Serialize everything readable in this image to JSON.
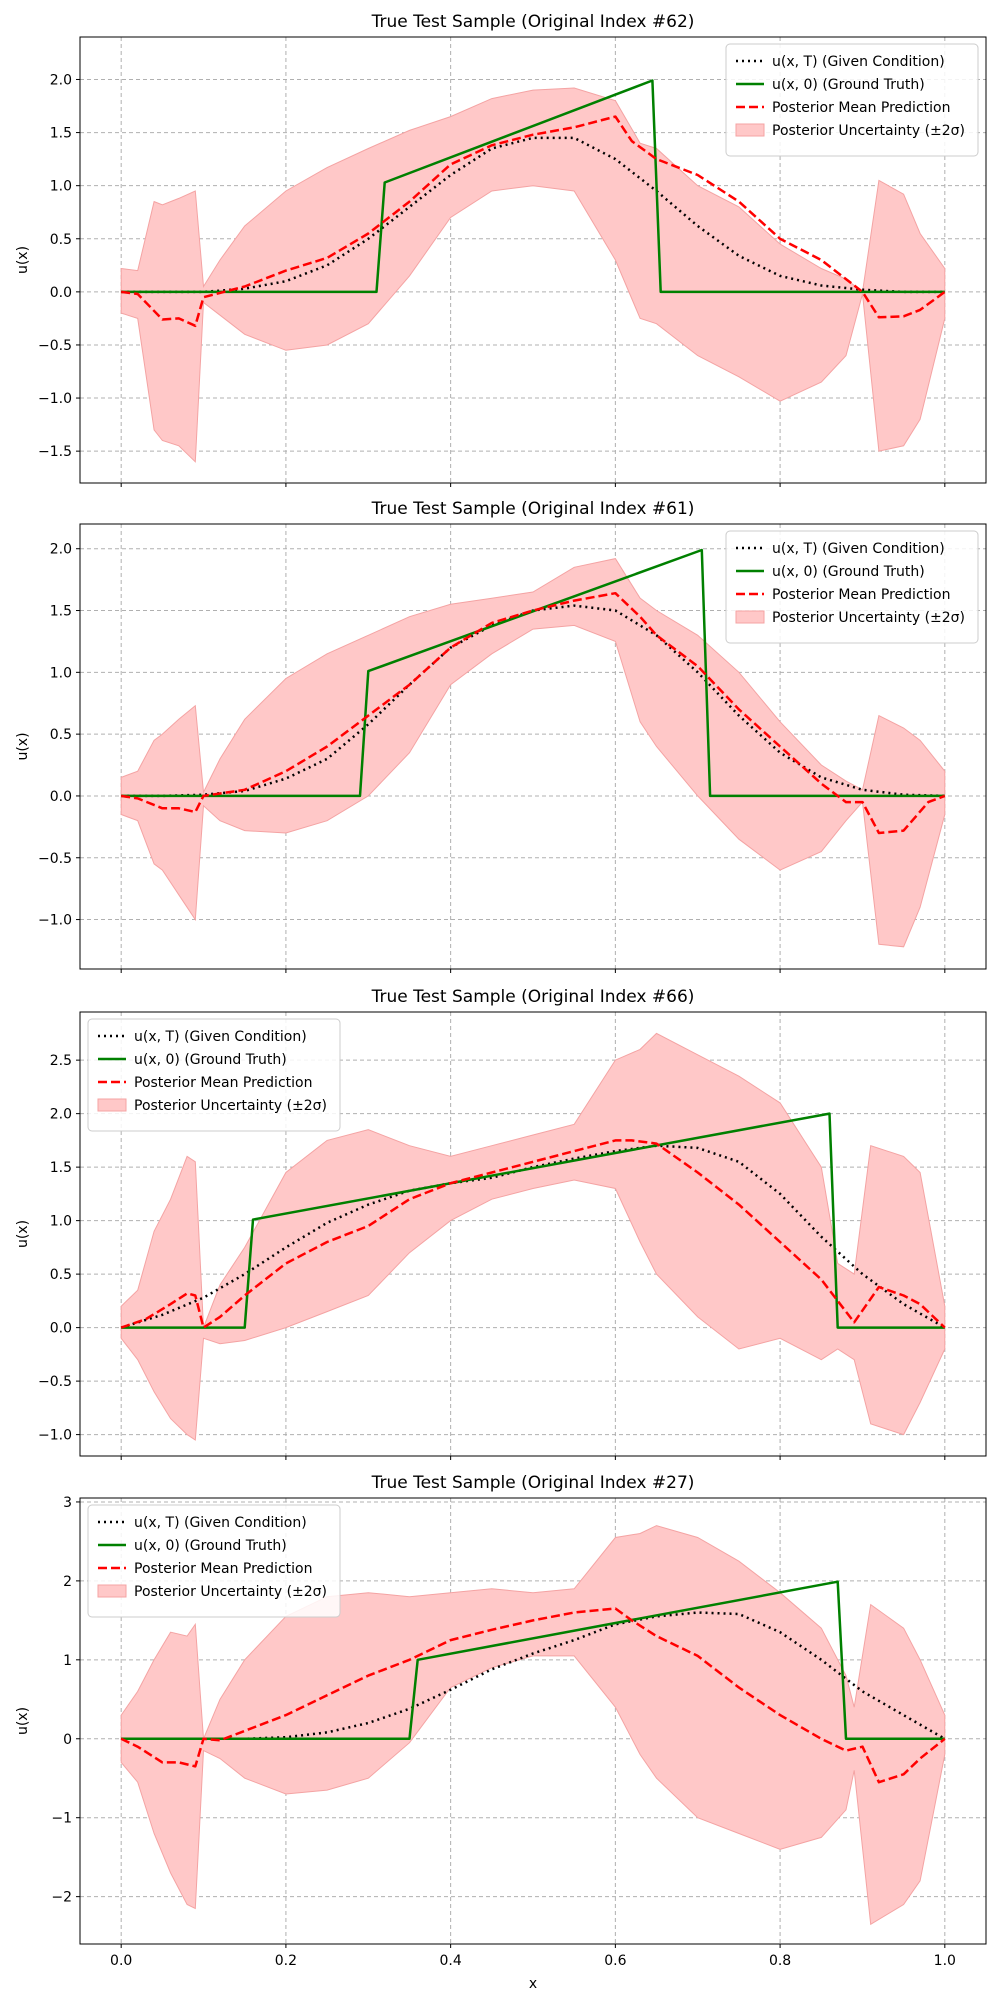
{
  "colors": {
    "condition": "#000000",
    "ground_truth": "#008000",
    "mean": "#ff0000",
    "band": "#ffc8c8",
    "band_edge": "#f4a3a3",
    "grid": "#b0b0b0"
  },
  "xlabel": "x",
  "ylabel": "u(x)",
  "legend_labels": {
    "condition": "u(x, T) (Given Condition)",
    "ground_truth": "u(x, 0) (Ground Truth)",
    "mean": "Posterior Mean Prediction",
    "band": "Posterior Uncertainty (±2σ)"
  },
  "x_tick_labels": [
    "0.0",
    "0.2",
    "0.4",
    "0.6",
    "0.8",
    "1.0"
  ],
  "chart_data": [
    {
      "type": "line",
      "title": "True Test Sample (Original Index #62)",
      "xlabel": "",
      "ylabel": "u(x)",
      "xlim": [
        -0.05,
        1.05
      ],
      "ylim": [
        -1.8,
        2.4
      ],
      "x_ticks": [
        0,
        0.2,
        0.4,
        0.6,
        0.8,
        1.0
      ],
      "y_ticks": [
        -1.5,
        -1.0,
        -0.5,
        0.0,
        0.5,
        1.0,
        1.5,
        2.0
      ],
      "y_tick_labels": [
        "−1.5",
        "−1.0",
        "−0.5",
        "0.0",
        "0.5",
        "1.0",
        "1.5",
        "2.0"
      ],
      "grid": true,
      "legend_position": "upper right",
      "ground_truth": {
        "x": [
          0,
          0.31,
          0.32,
          0.645,
          0.655,
          1.0
        ],
        "y": [
          0,
          0,
          1.03,
          1.99,
          0,
          0
        ]
      },
      "condition": {
        "x": [
          0,
          0.05,
          0.1,
          0.15,
          0.2,
          0.25,
          0.3,
          0.35,
          0.4,
          0.45,
          0.5,
          0.55,
          0.6,
          0.65,
          0.7,
          0.75,
          0.8,
          0.85,
          0.9,
          0.95,
          1.0
        ],
        "y": [
          0,
          0,
          0,
          0.03,
          0.1,
          0.25,
          0.5,
          0.8,
          1.1,
          1.35,
          1.45,
          1.45,
          1.25,
          0.95,
          0.62,
          0.34,
          0.15,
          0.06,
          0.02,
          0,
          0
        ]
      },
      "mean": {
        "x": [
          0,
          0.02,
          0.05,
          0.07,
          0.09,
          0.1,
          0.12,
          0.15,
          0.2,
          0.25,
          0.3,
          0.35,
          0.4,
          0.45,
          0.5,
          0.55,
          0.6,
          0.62,
          0.65,
          0.7,
          0.75,
          0.8,
          0.85,
          0.88,
          0.9,
          0.92,
          0.95,
          0.97,
          1.0
        ],
        "y": [
          0,
          -0.02,
          -0.26,
          -0.25,
          -0.32,
          -0.05,
          -0.01,
          0.05,
          0.2,
          0.32,
          0.55,
          0.85,
          1.2,
          1.38,
          1.48,
          1.55,
          1.65,
          1.42,
          1.25,
          1.1,
          0.85,
          0.5,
          0.3,
          0.12,
          0.0,
          -0.24,
          -0.23,
          -0.17,
          0
        ]
      },
      "band": {
        "x": [
          0,
          0.02,
          0.04,
          0.05,
          0.07,
          0.09,
          0.1,
          0.12,
          0.15,
          0.2,
          0.25,
          0.3,
          0.35,
          0.4,
          0.45,
          0.5,
          0.55,
          0.6,
          0.63,
          0.65,
          0.7,
          0.75,
          0.8,
          0.85,
          0.88,
          0.9,
          0.92,
          0.95,
          0.97,
          1.0
        ],
        "upper": [
          0.22,
          0.2,
          0.85,
          0.82,
          0.88,
          0.95,
          0.05,
          0.3,
          0.62,
          0.95,
          1.17,
          1.35,
          1.52,
          1.65,
          1.82,
          1.9,
          1.92,
          1.8,
          1.4,
          1.35,
          1.0,
          0.8,
          0.45,
          0.22,
          0.12,
          0.0,
          1.05,
          0.92,
          0.55,
          0.22
        ],
        "lower": [
          -0.2,
          -0.25,
          -1.3,
          -1.4,
          -1.45,
          -1.6,
          -0.1,
          -0.22,
          -0.4,
          -0.55,
          -0.5,
          -0.3,
          0.15,
          0.7,
          0.95,
          1.0,
          0.95,
          0.3,
          -0.25,
          -0.3,
          -0.6,
          -0.8,
          -1.03,
          -0.85,
          -0.6,
          -0.02,
          -1.5,
          -1.45,
          -1.2,
          -0.25
        ]
      }
    },
    {
      "type": "line",
      "title": "True Test Sample (Original Index #61)",
      "xlabel": "",
      "ylabel": "u(x)",
      "xlim": [
        -0.05,
        1.05
      ],
      "ylim": [
        -1.4,
        2.2
      ],
      "x_ticks": [
        0,
        0.2,
        0.4,
        0.6,
        0.8,
        1.0
      ],
      "y_ticks": [
        -1.0,
        -0.5,
        0.0,
        0.5,
        1.0,
        1.5,
        2.0
      ],
      "y_tick_labels": [
        "−1.0",
        "−0.5",
        "0.0",
        "0.5",
        "1.0",
        "1.5",
        "2.0"
      ],
      "grid": true,
      "legend_position": "upper right",
      "ground_truth": {
        "x": [
          0,
          0.29,
          0.3,
          0.705,
          0.715,
          1.0
        ],
        "y": [
          0,
          0,
          1.01,
          1.99,
          0,
          0
        ]
      },
      "condition": {
        "x": [
          0,
          0.05,
          0.1,
          0.15,
          0.2,
          0.25,
          0.3,
          0.35,
          0.4,
          0.45,
          0.5,
          0.55,
          0.6,
          0.65,
          0.7,
          0.75,
          0.8,
          0.85,
          0.9,
          0.95,
          1.0
        ],
        "y": [
          0,
          0,
          0.01,
          0.04,
          0.14,
          0.3,
          0.58,
          0.9,
          1.2,
          1.38,
          1.5,
          1.54,
          1.5,
          1.3,
          1.0,
          0.65,
          0.35,
          0.15,
          0.05,
          0.01,
          0
        ]
      },
      "mean": {
        "x": [
          0,
          0.02,
          0.05,
          0.07,
          0.09,
          0.1,
          0.12,
          0.15,
          0.2,
          0.25,
          0.3,
          0.35,
          0.4,
          0.45,
          0.5,
          0.55,
          0.6,
          0.63,
          0.65,
          0.7,
          0.75,
          0.8,
          0.85,
          0.88,
          0.9,
          0.92,
          0.95,
          0.98,
          1.0
        ],
        "y": [
          0,
          -0.02,
          -0.1,
          -0.1,
          -0.13,
          0.0,
          0.02,
          0.05,
          0.2,
          0.4,
          0.65,
          0.9,
          1.2,
          1.4,
          1.5,
          1.58,
          1.64,
          1.45,
          1.3,
          1.05,
          0.7,
          0.4,
          0.1,
          -0.05,
          -0.05,
          -0.3,
          -0.28,
          -0.05,
          0.0
        ]
      },
      "band": {
        "x": [
          0,
          0.02,
          0.04,
          0.05,
          0.07,
          0.09,
          0.1,
          0.12,
          0.15,
          0.2,
          0.25,
          0.3,
          0.35,
          0.4,
          0.45,
          0.5,
          0.55,
          0.6,
          0.63,
          0.65,
          0.7,
          0.75,
          0.8,
          0.85,
          0.88,
          0.9,
          0.92,
          0.95,
          0.97,
          1.0
        ],
        "upper": [
          0.15,
          0.2,
          0.45,
          0.5,
          0.62,
          0.73,
          0.03,
          0.3,
          0.62,
          0.95,
          1.15,
          1.3,
          1.45,
          1.55,
          1.6,
          1.65,
          1.85,
          1.92,
          1.6,
          1.5,
          1.3,
          1.0,
          0.6,
          0.25,
          0.12,
          0.05,
          0.65,
          0.55,
          0.45,
          0.2
        ],
        "lower": [
          -0.15,
          -0.2,
          -0.55,
          -0.6,
          -0.8,
          -1.0,
          -0.08,
          -0.2,
          -0.28,
          -0.3,
          -0.2,
          0.0,
          0.35,
          0.9,
          1.15,
          1.35,
          1.38,
          1.25,
          0.6,
          0.4,
          0.0,
          -0.35,
          -0.6,
          -0.45,
          -0.2,
          -0.05,
          -1.2,
          -1.22,
          -0.9,
          -0.15
        ]
      }
    },
    {
      "type": "line",
      "title": "True Test Sample (Original Index #66)",
      "xlabel": "",
      "ylabel": "u(x)",
      "xlim": [
        -0.05,
        1.05
      ],
      "ylim": [
        -1.2,
        2.95
      ],
      "x_ticks": [
        0,
        0.2,
        0.4,
        0.6,
        0.8,
        1.0
      ],
      "y_ticks": [
        -1.0,
        -0.5,
        0.0,
        0.5,
        1.0,
        1.5,
        2.0,
        2.5
      ],
      "y_tick_labels": [
        "−1.0",
        "−0.5",
        "0.0",
        "0.5",
        "1.0",
        "1.5",
        "2.0",
        "2.5"
      ],
      "grid": true,
      "legend_position": "upper left",
      "ground_truth": {
        "x": [
          0,
          0.15,
          0.16,
          0.86,
          0.87,
          1.0
        ],
        "y": [
          0,
          0,
          1.01,
          2.0,
          0,
          0
        ]
      },
      "condition": {
        "x": [
          0,
          0.05,
          0.1,
          0.15,
          0.2,
          0.25,
          0.3,
          0.35,
          0.4,
          0.45,
          0.5,
          0.55,
          0.6,
          0.65,
          0.7,
          0.75,
          0.8,
          0.85,
          0.9,
          0.95,
          1.0
        ],
        "y": [
          0,
          0.12,
          0.28,
          0.5,
          0.75,
          0.98,
          1.15,
          1.28,
          1.35,
          1.4,
          1.5,
          1.58,
          1.65,
          1.7,
          1.68,
          1.55,
          1.25,
          0.85,
          0.5,
          0.22,
          0.0
        ]
      },
      "mean": {
        "x": [
          0,
          0.03,
          0.06,
          0.08,
          0.09,
          0.1,
          0.12,
          0.15,
          0.2,
          0.25,
          0.3,
          0.35,
          0.4,
          0.45,
          0.5,
          0.55,
          0.6,
          0.62,
          0.65,
          0.7,
          0.75,
          0.8,
          0.85,
          0.87,
          0.89,
          0.92,
          0.95,
          0.97,
          1.0
        ],
        "y": [
          0,
          0.08,
          0.22,
          0.32,
          0.3,
          0.0,
          0.1,
          0.3,
          0.6,
          0.8,
          0.95,
          1.2,
          1.35,
          1.45,
          1.55,
          1.65,
          1.75,
          1.75,
          1.72,
          1.45,
          1.15,
          0.8,
          0.45,
          0.25,
          0.05,
          0.38,
          0.3,
          0.22,
          0
        ]
      },
      "band": {
        "x": [
          0,
          0.02,
          0.04,
          0.06,
          0.08,
          0.09,
          0.1,
          0.12,
          0.15,
          0.2,
          0.25,
          0.3,
          0.35,
          0.4,
          0.45,
          0.5,
          0.55,
          0.6,
          0.63,
          0.65,
          0.7,
          0.75,
          0.8,
          0.85,
          0.87,
          0.89,
          0.91,
          0.95,
          0.97,
          1.0
        ],
        "upper": [
          0.2,
          0.35,
          0.9,
          1.2,
          1.6,
          1.55,
          0.0,
          0.4,
          0.75,
          1.45,
          1.75,
          1.85,
          1.7,
          1.6,
          1.7,
          1.8,
          1.9,
          2.5,
          2.6,
          2.75,
          2.55,
          2.35,
          2.1,
          1.5,
          0.6,
          0.5,
          1.7,
          1.6,
          1.45,
          0.2
        ],
        "lower": [
          -0.1,
          -0.3,
          -0.6,
          -0.85,
          -1.0,
          -1.05,
          -0.1,
          -0.15,
          -0.12,
          0.0,
          0.15,
          0.3,
          0.7,
          1.0,
          1.2,
          1.3,
          1.38,
          1.3,
          0.8,
          0.5,
          0.1,
          -0.2,
          -0.1,
          -0.3,
          -0.2,
          -0.3,
          -0.9,
          -1.0,
          -0.7,
          -0.2
        ]
      }
    },
    {
      "type": "line",
      "title": "True Test Sample (Original Index #27)",
      "xlabel": "x",
      "ylabel": "u(x)",
      "xlim": [
        -0.05,
        1.05
      ],
      "ylim": [
        -2.6,
        3.05
      ],
      "x_ticks": [
        0,
        0.2,
        0.4,
        0.6,
        0.8,
        1.0
      ],
      "y_ticks": [
        -2,
        -1,
        0,
        1,
        2,
        3
      ],
      "y_tick_labels": [
        "−2",
        "−1",
        "0",
        "1",
        "2",
        "3"
      ],
      "grid": true,
      "legend_position": "upper left",
      "ground_truth": {
        "x": [
          0,
          0.35,
          0.36,
          0.87,
          0.88,
          1.0
        ],
        "y": [
          0,
          0,
          1.0,
          1.99,
          0,
          0
        ]
      },
      "condition": {
        "x": [
          0,
          0.05,
          0.1,
          0.15,
          0.2,
          0.25,
          0.3,
          0.35,
          0.4,
          0.45,
          0.5,
          0.55,
          0.6,
          0.65,
          0.7,
          0.75,
          0.8,
          0.85,
          0.9,
          0.95,
          1.0
        ],
        "y": [
          0,
          0,
          0,
          0,
          0.02,
          0.08,
          0.2,
          0.38,
          0.62,
          0.88,
          1.08,
          1.25,
          1.45,
          1.55,
          1.6,
          1.58,
          1.35,
          1.0,
          0.6,
          0.3,
          0.0
        ]
      },
      "mean": {
        "x": [
          0,
          0.02,
          0.05,
          0.07,
          0.09,
          0.1,
          0.12,
          0.15,
          0.2,
          0.25,
          0.3,
          0.35,
          0.4,
          0.45,
          0.5,
          0.55,
          0.6,
          0.62,
          0.65,
          0.7,
          0.75,
          0.8,
          0.85,
          0.88,
          0.9,
          0.92,
          0.95,
          0.97,
          1.0
        ],
        "y": [
          0,
          -0.1,
          -0.3,
          -0.3,
          -0.35,
          0.0,
          -0.02,
          0.1,
          0.3,
          0.55,
          0.8,
          1.0,
          1.25,
          1.38,
          1.5,
          1.6,
          1.65,
          1.5,
          1.3,
          1.05,
          0.65,
          0.3,
          0.0,
          -0.15,
          -0.1,
          -0.55,
          -0.45,
          -0.25,
          0
        ]
      },
      "band": {
        "x": [
          0,
          0.02,
          0.04,
          0.06,
          0.08,
          0.09,
          0.1,
          0.12,
          0.15,
          0.2,
          0.25,
          0.3,
          0.35,
          0.4,
          0.45,
          0.5,
          0.55,
          0.6,
          0.63,
          0.65,
          0.7,
          0.75,
          0.8,
          0.85,
          0.88,
          0.89,
          0.91,
          0.95,
          0.97,
          1.0
        ],
        "upper": [
          0.3,
          0.6,
          1.0,
          1.35,
          1.3,
          1.45,
          0.0,
          0.5,
          1.0,
          1.55,
          1.8,
          1.85,
          1.8,
          1.85,
          1.9,
          1.85,
          1.9,
          2.55,
          2.6,
          2.7,
          2.55,
          2.25,
          1.85,
          1.4,
          0.8,
          0.4,
          1.7,
          1.4,
          1.0,
          0.3
        ],
        "lower": [
          -0.3,
          -0.55,
          -1.2,
          -1.7,
          -2.1,
          -2.15,
          -0.15,
          -0.25,
          -0.5,
          -0.7,
          -0.65,
          -0.5,
          -0.05,
          0.65,
          0.9,
          1.05,
          1.05,
          0.4,
          -0.2,
          -0.5,
          -1.0,
          -1.2,
          -1.4,
          -1.25,
          -0.9,
          -0.4,
          -2.35,
          -2.1,
          -1.8,
          -0.2
        ]
      }
    }
  ]
}
